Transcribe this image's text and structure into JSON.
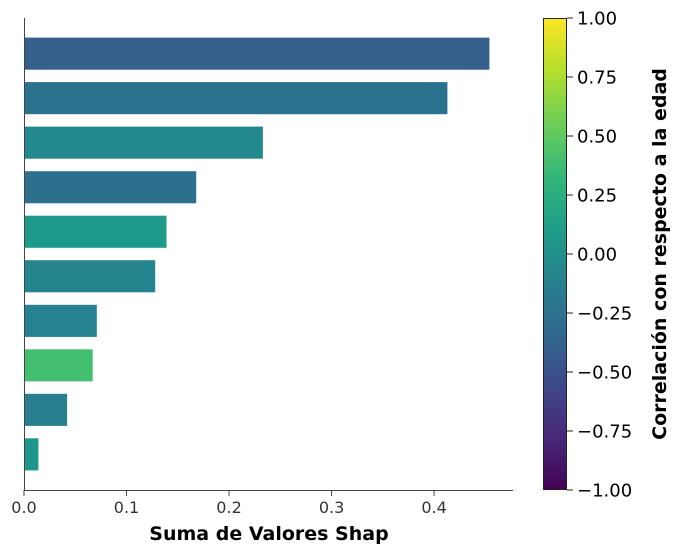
{
  "chart_data": {
    "type": "bar",
    "orientation": "horizontal",
    "xlabel": "Suma de Valores Shap",
    "xlim": [
      0,
      0.477
    ],
    "x_ticks": [
      0.0,
      0.1,
      0.2,
      0.3,
      0.4
    ],
    "x_tick_labels": [
      "0.0",
      "0.1",
      "0.2",
      "0.3",
      "0.4"
    ],
    "ylabel": "",
    "values": [
      0.454,
      0.413,
      0.233,
      0.168,
      0.139,
      0.128,
      0.071,
      0.067,
      0.042,
      0.014
    ],
    "correlation": [
      -0.48,
      -0.38,
      -0.24,
      -0.34,
      0.07,
      -0.21,
      -0.24,
      0.42,
      -0.28,
      -0.05
    ],
    "bar_colors": [
      "#355f8d",
      "#2a728e",
      "#23898e",
      "#2d708e",
      "#1f9a8a",
      "#25858e",
      "#26828e",
      "#44bf70",
      "#287d8e",
      "#1f968b"
    ],
    "colorbar": {
      "label": "Correlación con respecto a la edad",
      "range": [
        -1.0,
        1.0
      ],
      "ticks": [
        1.0,
        0.75,
        0.5,
        0.25,
        0.0,
        -0.25,
        -0.5,
        -0.75,
        -1.0
      ],
      "tick_labels": [
        "1.00",
        "0.75",
        "0.50",
        "0.25",
        "0.00",
        "−0.25",
        "−0.50",
        "−0.75",
        "−1.00"
      ],
      "colormap": "viridis",
      "stops": [
        "#440154",
        "#482878",
        "#3e4989",
        "#31688e",
        "#26828e",
        "#1f9e89",
        "#35b779",
        "#6ece58",
        "#b5de2b",
        "#fde725"
      ]
    },
    "grid": false,
    "legend": "none"
  }
}
